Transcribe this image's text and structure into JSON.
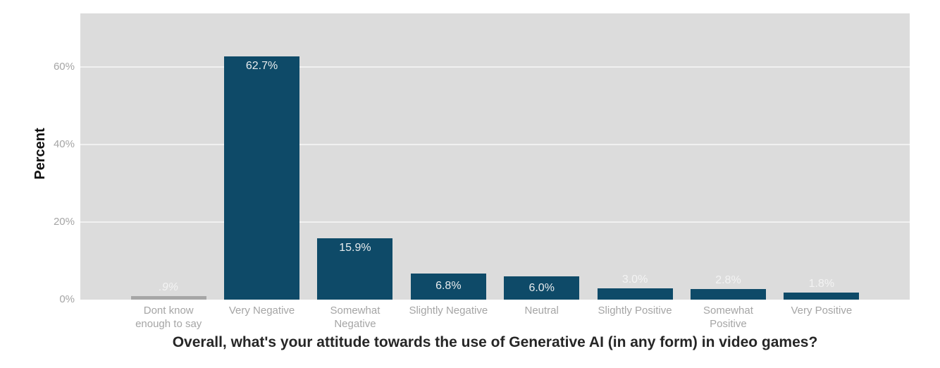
{
  "chart_data": {
    "type": "bar",
    "title": "Overall, what's your attitude towards the use of Generative AI (in any form) in video games?",
    "ylabel": "Percent",
    "xlabel": "",
    "ylim": [
      0,
      73.8
    ],
    "grid": true,
    "legend": "none",
    "y_ticks": [
      {
        "value": 0,
        "label": "0%"
      },
      {
        "value": 20,
        "label": "20%"
      },
      {
        "value": 40,
        "label": "40%"
      },
      {
        "value": 60,
        "label": "60%"
      }
    ],
    "categories": [
      "Dont know enough to say",
      "Very Negative",
      "Somewhat Negative",
      "Slightly Negative",
      "Neutral",
      "Slightly Positive",
      "Somewhat Positive",
      "Very Positive"
    ],
    "values": [
      0.9,
      62.7,
      15.9,
      6.8,
      6.0,
      3.0,
      2.8,
      1.8
    ],
    "value_labels": [
      ".9%",
      "62.7%",
      "15.9%",
      "6.8%",
      "6.0%",
      "3.0%",
      "2.8%",
      "1.8%"
    ],
    "value_label_styles": [
      "italic",
      "normal",
      "normal",
      "normal",
      "normal",
      "normal",
      "normal",
      "normal"
    ],
    "bar_colors": [
      "#a6a6a6",
      "#0e4a68",
      "#0e4a68",
      "#0e4a68",
      "#0e4a68",
      "#0e4a68",
      "#0e4a68",
      "#0e4a68"
    ],
    "colors": {
      "page_background": "#ffffff",
      "plot_background": "#dcdcdc",
      "gridline": "rgba(255,255,255,0.6)",
      "bar": "#0e4a68",
      "dont_know_bar": "#a6a6a6",
      "tick_label": "#a5a5a5",
      "category_label": "#a5a5a5",
      "value_label_inside": "#e8ecee",
      "value_label_outside": "#f3f3f3",
      "axis_title": "#111111",
      "title": "#262626"
    }
  }
}
